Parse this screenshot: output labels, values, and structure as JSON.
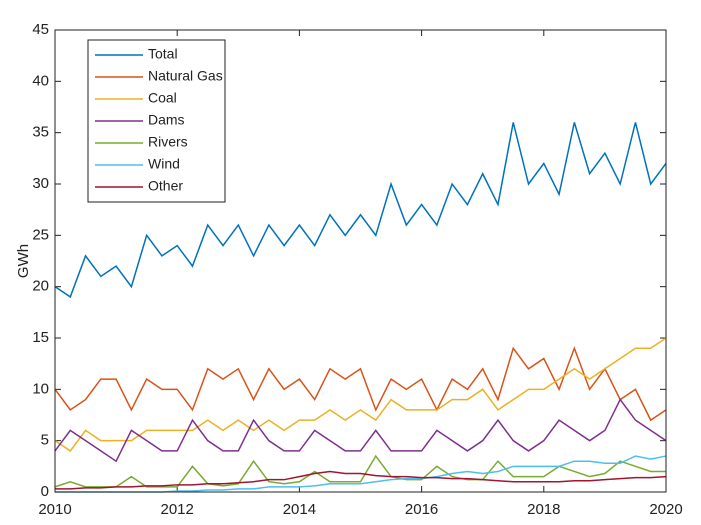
{
  "chart_data": {
    "type": "line",
    "ylabel": "GWh",
    "x": [
      2010,
      2010.25,
      2010.5,
      2010.75,
      2011,
      2011.25,
      2011.5,
      2011.75,
      2012,
      2012.25,
      2012.5,
      2012.75,
      2013,
      2013.25,
      2013.5,
      2013.75,
      2014,
      2014.25,
      2014.5,
      2014.75,
      2015,
      2015.25,
      2015.5,
      2015.75,
      2016,
      2016.25,
      2016.5,
      2016.75,
      2017,
      2017.25,
      2017.5,
      2017.75,
      2018,
      2018.25,
      2018.5,
      2018.75,
      2019,
      2019.25,
      2019.5,
      2019.75,
      2020
    ],
    "series": [
      {
        "name": "Total",
        "color": "#0072BD",
        "values": [
          20,
          19,
          23,
          21,
          22,
          20,
          25,
          23,
          24,
          22,
          26,
          24,
          26,
          23,
          26,
          24,
          26,
          24,
          27,
          25,
          27,
          25,
          30,
          26,
          28,
          26,
          30,
          28,
          31,
          28,
          36,
          30,
          32,
          29,
          36,
          31,
          33,
          30,
          36,
          30,
          32
        ]
      },
      {
        "name": "Natural Gas",
        "color": "#D95319",
        "values": [
          10,
          8,
          9,
          11,
          11,
          8,
          11,
          10,
          10,
          8,
          12,
          11,
          12,
          9,
          12,
          10,
          11,
          9,
          12,
          11,
          12,
          8,
          11,
          10,
          11,
          8,
          11,
          10,
          12,
          9,
          14,
          12,
          13,
          10,
          14,
          10,
          12,
          9,
          10,
          7,
          8
        ]
      },
      {
        "name": "Coal",
        "color": "#EDB120",
        "values": [
          5,
          4,
          6,
          5,
          5,
          5,
          6,
          6,
          6,
          6,
          7,
          6,
          7,
          6,
          7,
          6,
          7,
          7,
          8,
          7,
          8,
          7,
          9,
          8,
          8,
          8,
          9,
          9,
          10,
          8,
          9,
          10,
          10,
          11,
          12,
          11,
          12,
          13,
          14,
          14,
          15
        ]
      },
      {
        "name": "Dams",
        "color": "#7E2F8E",
        "values": [
          4,
          6,
          5,
          4,
          3,
          6,
          5,
          4,
          4,
          7,
          5,
          4,
          4,
          7,
          5,
          4,
          4,
          6,
          5,
          4,
          4,
          6,
          4,
          4,
          4,
          6,
          5,
          4,
          5,
          7,
          5,
          4,
          5,
          7,
          6,
          5,
          6,
          9,
          7,
          6,
          5
        ]
      },
      {
        "name": "Rivers",
        "color": "#77AC30",
        "values": [
          0.5,
          1,
          0.5,
          0.5,
          0.5,
          1.5,
          0.5,
          0.5,
          0.5,
          2.5,
          0.8,
          0.6,
          0.8,
          3,
          1,
          0.8,
          1,
          2,
          1,
          1,
          1,
          3.5,
          1.5,
          1.2,
          1.2,
          2.5,
          1.5,
          1.2,
          1.2,
          3,
          1.5,
          1.5,
          1.5,
          2.5,
          2,
          1.5,
          1.8,
          3,
          2.5,
          2,
          2
        ]
      },
      {
        "name": "Wind",
        "color": "#4DBEEE",
        "values": [
          0,
          0,
          0,
          0,
          0,
          0,
          0,
          0,
          0.1,
          0.1,
          0.2,
          0.2,
          0.3,
          0.3,
          0.5,
          0.5,
          0.5,
          0.6,
          0.8,
          0.8,
          0.8,
          1,
          1.2,
          1.3,
          1.3,
          1.5,
          1.8,
          2,
          1.8,
          2,
          2.5,
          2.5,
          2.5,
          2.5,
          3,
          3,
          2.8,
          2.8,
          3.5,
          3.2,
          3.5
        ]
      },
      {
        "name": "Other",
        "color": "#A2142F",
        "values": [
          0.3,
          0.3,
          0.4,
          0.4,
          0.5,
          0.5,
          0.6,
          0.6,
          0.7,
          0.7,
          0.8,
          0.8,
          0.9,
          1,
          1.2,
          1.2,
          1.5,
          1.8,
          2,
          1.8,
          1.8,
          1.6,
          1.5,
          1.5,
          1.4,
          1.4,
          1.3,
          1.3,
          1.2,
          1.1,
          1,
          1,
          1,
          1,
          1.1,
          1.1,
          1.2,
          1.3,
          1.4,
          1.4,
          1.5
        ]
      }
    ],
    "xlim": [
      2010,
      2020
    ],
    "xticks": [
      2010,
      2012,
      2014,
      2016,
      2018,
      2020
    ],
    "ylim": [
      0,
      45
    ],
    "yticks": [
      0,
      5,
      10,
      15,
      20,
      25,
      30,
      35,
      40,
      45
    ],
    "grid": false,
    "legend": "upper-left"
  }
}
